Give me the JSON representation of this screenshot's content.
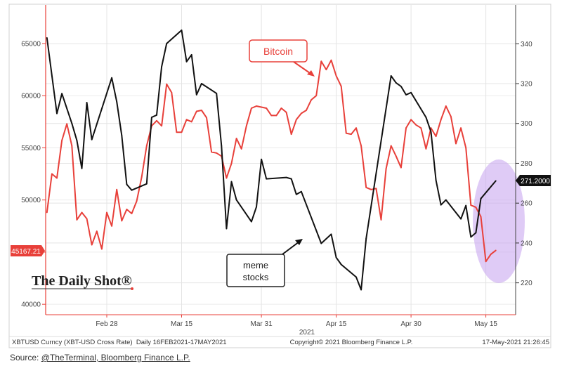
{
  "chart_data": {
    "type": "line",
    "x_axis": {
      "ticks": [
        "Feb 28",
        "Mar 15",
        "Mar 31",
        "Apr 15",
        "Apr 30",
        "May 15"
      ],
      "tick_dates": [
        "2021-02-28",
        "2021-03-15",
        "2021-03-31",
        "2021-04-15",
        "2021-04-30",
        "2021-05-15"
      ],
      "year_label": "2021",
      "range": [
        "2021-02-16",
        "2021-05-18"
      ]
    },
    "y_left": {
      "ticks": [
        "65000",
        "60000",
        "55000",
        "50000",
        "40000"
      ],
      "tick_values": [
        65000,
        60000,
        55000,
        50000,
        45000,
        40000
      ],
      "range": [
        39000,
        68700
      ],
      "color": "#e8403a"
    },
    "y_right": {
      "ticks": [
        "340",
        "320",
        "300",
        "280",
        "260",
        "240",
        "220"
      ],
      "tick_values": [
        340,
        320,
        300,
        280,
        260,
        240,
        220
      ],
      "range": [
        204,
        359.5
      ]
    },
    "grid": true,
    "series": [
      {
        "name": "Bitcoin",
        "axis": "left",
        "color": "#e8403a",
        "last_value_label": "45167.21",
        "points": [
          [
            "2021-02-16",
            48800
          ],
          [
            "2021-02-17",
            52500
          ],
          [
            "2021-02-18",
            52100
          ],
          [
            "2021-02-19",
            55700
          ],
          [
            "2021-02-20",
            57300
          ],
          [
            "2021-02-21",
            55200
          ],
          [
            "2021-02-22",
            48100
          ],
          [
            "2021-02-23",
            48800
          ],
          [
            "2021-02-24",
            48200
          ],
          [
            "2021-02-25",
            45700
          ],
          [
            "2021-02-26",
            47000
          ],
          [
            "2021-02-27",
            45300
          ],
          [
            "2021-02-28",
            48800
          ],
          [
            "2021-03-01",
            47500
          ],
          [
            "2021-03-02",
            51000
          ],
          [
            "2021-03-03",
            48000
          ],
          [
            "2021-03-04",
            49100
          ],
          [
            "2021-03-05",
            48700
          ],
          [
            "2021-03-06",
            49900
          ],
          [
            "2021-03-07",
            52200
          ],
          [
            "2021-03-08",
            55200
          ],
          [
            "2021-03-09",
            57100
          ],
          [
            "2021-03-10",
            57600
          ],
          [
            "2021-03-11",
            57100
          ],
          [
            "2021-03-12",
            61100
          ],
          [
            "2021-03-13",
            60300
          ],
          [
            "2021-03-14",
            56500
          ],
          [
            "2021-03-15",
            56500
          ],
          [
            "2021-03-16",
            57700
          ],
          [
            "2021-03-17",
            57500
          ],
          [
            "2021-03-18",
            58500
          ],
          [
            "2021-03-19",
            58600
          ],
          [
            "2021-03-20",
            57900
          ],
          [
            "2021-03-21",
            54600
          ],
          [
            "2021-03-22",
            54500
          ],
          [
            "2021-03-23",
            54200
          ],
          [
            "2021-03-24",
            52100
          ],
          [
            "2021-03-25",
            53500
          ],
          [
            "2021-03-26",
            55900
          ],
          [
            "2021-03-27",
            54900
          ],
          [
            "2021-03-28",
            57100
          ],
          [
            "2021-03-29",
            58800
          ],
          [
            "2021-03-30",
            59000
          ],
          [
            "2021-03-31",
            58900
          ],
          [
            "2021-04-01",
            58800
          ],
          [
            "2021-04-02",
            58100
          ],
          [
            "2021-04-03",
            58100
          ],
          [
            "2021-04-04",
            58800
          ],
          [
            "2021-04-05",
            58400
          ],
          [
            "2021-04-06",
            56300
          ],
          [
            "2021-04-07",
            57700
          ],
          [
            "2021-04-08",
            58300
          ],
          [
            "2021-04-09",
            58600
          ],
          [
            "2021-04-10",
            59600
          ],
          [
            "2021-04-11",
            60000
          ],
          [
            "2021-04-12",
            63300
          ],
          [
            "2021-04-13",
            62500
          ],
          [
            "2021-04-14",
            63400
          ],
          [
            "2021-04-15",
            61900
          ],
          [
            "2021-04-16",
            60900
          ],
          [
            "2021-04-17",
            56400
          ],
          [
            "2021-04-18",
            56300
          ],
          [
            "2021-04-19",
            56900
          ],
          [
            "2021-04-20",
            55200
          ],
          [
            "2021-04-21",
            51200
          ],
          [
            "2021-04-22",
            51000
          ],
          [
            "2021-04-23",
            51100
          ],
          [
            "2021-04-24",
            48100
          ],
          [
            "2021-04-25",
            53000
          ],
          [
            "2021-04-26",
            55200
          ],
          [
            "2021-04-27",
            54200
          ],
          [
            "2021-04-28",
            53100
          ],
          [
            "2021-04-29",
            56900
          ],
          [
            "2021-04-30",
            57700
          ],
          [
            "2021-05-01",
            57200
          ],
          [
            "2021-05-02",
            56900
          ],
          [
            "2021-05-03",
            54900
          ],
          [
            "2021-05-04",
            56900
          ],
          [
            "2021-05-05",
            56100
          ],
          [
            "2021-05-06",
            57700
          ],
          [
            "2021-05-07",
            59000
          ],
          [
            "2021-05-08",
            58000
          ],
          [
            "2021-05-09",
            55400
          ],
          [
            "2021-05-10",
            56900
          ],
          [
            "2021-05-11",
            55000
          ],
          [
            "2021-05-12",
            49500
          ],
          [
            "2021-05-13",
            49300
          ],
          [
            "2021-05-14",
            48400
          ],
          [
            "2021-05-15",
            44100
          ],
          [
            "2021-05-16",
            44800
          ],
          [
            "2021-05-17",
            45167.21
          ]
        ]
      },
      {
        "name": "meme stocks",
        "axis": "right",
        "color": "#111111",
        "last_value_label": "271.2000",
        "points": [
          [
            "2021-02-16",
            343
          ],
          [
            "2021-02-18",
            305
          ],
          [
            "2021-02-19",
            315
          ],
          [
            "2021-02-21",
            300
          ],
          [
            "2021-02-22",
            291.5
          ],
          [
            "2021-02-23",
            277.4
          ],
          [
            "2021-02-24",
            310.5
          ],
          [
            "2021-02-25",
            291.9
          ],
          [
            "2021-03-01",
            322.9
          ],
          [
            "2021-03-02",
            310.9
          ],
          [
            "2021-03-03",
            294
          ],
          [
            "2021-03-04",
            269.4
          ],
          [
            "2021-03-05",
            266.5
          ],
          [
            "2021-03-08",
            269.7
          ],
          [
            "2021-03-09",
            303.1
          ],
          [
            "2021-03-10",
            304.2
          ],
          [
            "2021-03-11",
            328.5
          ],
          [
            "2021-03-12",
            340.1
          ],
          [
            "2021-03-15",
            346.8
          ],
          [
            "2021-03-16",
            331
          ],
          [
            "2021-03-17",
            334.5
          ],
          [
            "2021-03-18",
            314.4
          ],
          [
            "2021-03-19",
            320
          ],
          [
            "2021-03-22",
            315.1
          ],
          [
            "2021-03-23",
            288.7
          ],
          [
            "2021-03-24",
            247.2
          ],
          [
            "2021-03-25",
            270.8
          ],
          [
            "2021-03-26",
            261.6
          ],
          [
            "2021-03-29",
            250.7
          ],
          [
            "2021-03-30",
            258.1
          ],
          [
            "2021-03-31",
            282
          ],
          [
            "2021-04-01",
            272.2
          ],
          [
            "2021-04-05",
            272.9
          ],
          [
            "2021-04-06",
            272.2
          ],
          [
            "2021-04-07",
            264.4
          ],
          [
            "2021-04-08",
            265.8
          ],
          [
            "2021-04-12",
            239.8
          ],
          [
            "2021-04-14",
            244.4
          ],
          [
            "2021-04-15",
            232.7
          ],
          [
            "2021-04-16",
            229.2
          ],
          [
            "2021-04-19",
            222.9
          ],
          [
            "2021-04-20",
            216.5
          ],
          [
            "2021-04-21",
            242.2
          ],
          [
            "2021-04-26",
            323.9
          ],
          [
            "2021-04-27",
            320.4
          ],
          [
            "2021-04-28",
            318.6
          ],
          [
            "2021-04-29",
            314.4
          ],
          [
            "2021-04-30",
            315.5
          ],
          [
            "2021-05-03",
            303.1
          ],
          [
            "2021-05-04",
            295.8
          ],
          [
            "2021-05-05",
            271.5
          ],
          [
            "2021-05-06",
            259.1
          ],
          [
            "2021-05-07",
            261.6
          ],
          [
            "2021-05-10",
            252.1
          ],
          [
            "2021-05-11",
            258.8
          ],
          [
            "2021-05-12",
            243
          ],
          [
            "2021-05-13",
            245.1
          ],
          [
            "2021-05-14",
            262.3
          ],
          [
            "2021-05-17",
            271.2
          ]
        ]
      }
    ],
    "annotations": {
      "bitcoin_label": "Bitcoin",
      "meme_label_line1": "meme",
      "meme_label_line2": "stocks",
      "highlight_color": "#c9a8f0"
    }
  },
  "logo": "The Daily Shot®",
  "footer": {
    "left": "XBTUSD Curncy (XBT-USD Cross Rate)  Daily 16FEB2021-17MAY2021",
    "center": "Copyright© 2021 Bloomberg Finance L.P.",
    "right": "17-May-2021 21:26:45"
  },
  "source": {
    "prefix": "Source: ",
    "link": "@TheTerminal, Bloomberg Finance L.P."
  }
}
